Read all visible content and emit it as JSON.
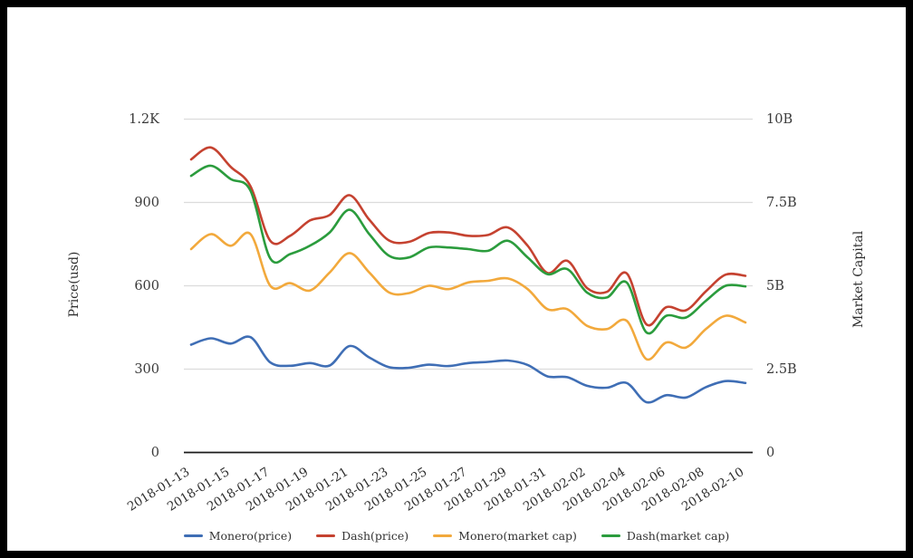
{
  "chart_data": {
    "type": "line",
    "x": [
      "2018-01-13",
      "2018-01-14",
      "2018-01-15",
      "2018-01-16",
      "2018-01-17",
      "2018-01-18",
      "2018-01-19",
      "2018-01-20",
      "2018-01-21",
      "2018-01-22",
      "2018-01-23",
      "2018-01-24",
      "2018-01-25",
      "2018-01-26",
      "2018-01-27",
      "2018-01-28",
      "2018-01-29",
      "2018-01-30",
      "2018-01-31",
      "2018-02-01",
      "2018-02-02",
      "2018-02-03",
      "2018-02-04",
      "2018-02-05",
      "2018-02-06",
      "2018-02-07",
      "2018-02-08",
      "2018-02-09",
      "2018-02-10"
    ],
    "x_label_every": 2,
    "series": [
      {
        "name": "Monero(price)",
        "axis": "left",
        "color": "#3F6EB5",
        "values": [
          388,
          411,
          392,
          415,
          324,
          312,
          322,
          313,
          383,
          342,
          307,
          305,
          316,
          311,
          322,
          326,
          331,
          315,
          274,
          271,
          240,
          233,
          250,
          181,
          206,
          198,
          235,
          257,
          250
        ]
      },
      {
        "name": "Dash(price)",
        "axis": "left",
        "color": "#C54230",
        "values": [
          1055,
          1098,
          1028,
          958,
          762,
          780,
          835,
          855,
          926,
          838,
          763,
          758,
          790,
          792,
          780,
          783,
          810,
          744,
          646,
          690,
          592,
          578,
          645,
          461,
          523,
          512,
          580,
          640,
          636
        ]
      },
      {
        "name": "Monero(market cap)",
        "axis": "right",
        "color": "#F2A93C",
        "values": [
          6.1,
          6.55,
          6.2,
          6.55,
          5.0,
          5.08,
          4.86,
          5.4,
          5.98,
          5.4,
          4.8,
          4.78,
          5.0,
          4.9,
          5.1,
          5.15,
          5.22,
          4.9,
          4.3,
          4.3,
          3.8,
          3.7,
          3.95,
          2.8,
          3.3,
          3.15,
          3.7,
          4.1,
          3.9
        ]
      },
      {
        "name": "Dash(market cap)",
        "axis": "right",
        "color": "#2B9C3D",
        "values": [
          8.3,
          8.6,
          8.2,
          7.85,
          5.82,
          5.95,
          6.2,
          6.6,
          7.28,
          6.55,
          5.9,
          5.85,
          6.15,
          6.15,
          6.1,
          6.05,
          6.35,
          5.85,
          5.35,
          5.5,
          4.8,
          4.65,
          5.1,
          3.6,
          4.1,
          4.05,
          4.55,
          5.0,
          4.98
        ]
      }
    ],
    "left_axis": {
      "label": "Price(usd)",
      "ticks": [
        "0",
        "300",
        "600",
        "900",
        "1.2K"
      ],
      "range": [
        0,
        1200
      ]
    },
    "right_axis": {
      "label": "Market Capital",
      "ticks": [
        "0",
        "2.5B",
        "5B",
        "7.5B",
        "10B"
      ],
      "range": [
        0,
        10
      ]
    },
    "grid": true,
    "legend_position": "bottom",
    "colors": {
      "gridline": "#DCDCDC",
      "axis_line": "#1A1A1A",
      "tick_text": "#333333",
      "background": "#FFFFFF",
      "frame_border": "#000000"
    }
  }
}
